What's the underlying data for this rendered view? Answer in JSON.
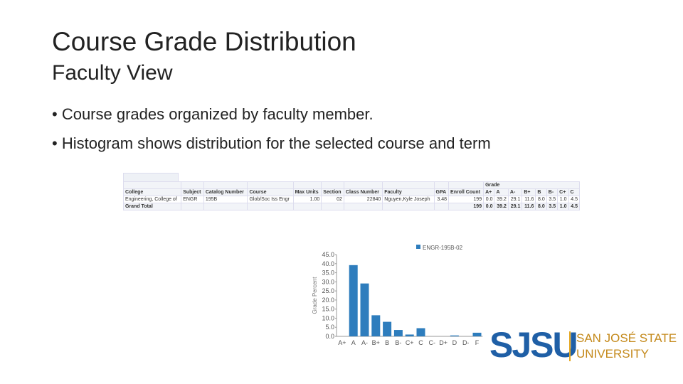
{
  "slide": {
    "title": "Course Grade Distribution",
    "subtitle": "Faculty View",
    "bullets": [
      "Course grades organized by faculty member.",
      "Histogram shows distribution for the selected course and term"
    ]
  },
  "table": {
    "group_header": "Grade",
    "headers": [
      "College",
      "Subject",
      "Catalog Number",
      "Course",
      "Max Units",
      "Section",
      "Class Number",
      "Faculty",
      "GPA",
      "Enroll Count"
    ],
    "grade_headers": [
      "A+",
      "A",
      "A-",
      "B+",
      "B",
      "B-",
      "C+",
      "C"
    ],
    "rows": [
      [
        "Engineering, College of",
        "ENGR",
        "195B",
        "Glob/Soc Iss Engr",
        "1.00",
        "02",
        "22840",
        "Nguyen,Kyle Joseph",
        "3.48",
        "199"
      ]
    ],
    "row_grades": [
      [
        "0.0",
        "39.2",
        "29.1",
        "11.6",
        "8.0",
        "3.5",
        "1.0",
        "4.5"
      ]
    ],
    "total_label": "Grand Total",
    "total_enroll": "199",
    "total_grades": [
      "0.0",
      "39.2",
      "29.1",
      "11.6",
      "8.0",
      "3.5",
      "1.0",
      "4.5"
    ]
  },
  "chart_data": {
    "type": "bar",
    "y_label": "Grade Percent",
    "categories": [
      "A+",
      "A",
      "A-",
      "B+",
      "B",
      "B-",
      "C+",
      "C",
      "C-",
      "D+",
      "D",
      "D-",
      "F"
    ],
    "series": [
      {
        "name": "ENGR-195B-02",
        "color": "#2e7dbd",
        "values": [
          0,
          39.2,
          29.1,
          11.6,
          8.0,
          3.5,
          1.0,
          4.5,
          0,
          0,
          0.5,
          0,
          2.0
        ]
      }
    ],
    "ylim": [
      0,
      45
    ],
    "yticks": [
      {
        "value": 0,
        "label": "0.0"
      },
      {
        "value": 5,
        "label": "5.0"
      },
      {
        "value": 10,
        "label": "10.0"
      },
      {
        "value": 15,
        "label": "15.0"
      },
      {
        "value": 20,
        "label": "20.0"
      },
      {
        "value": 25,
        "label": "25.0"
      },
      {
        "value": 30,
        "label": "30.0"
      },
      {
        "value": 35,
        "label": "35.0"
      },
      {
        "value": 40,
        "label": "40.0"
      },
      {
        "value": 45,
        "label": "45.0"
      }
    ]
  },
  "logo": {
    "mark": "SJSU",
    "line1": "SAN JOSÉ STATE",
    "line2": "UNIVERSITY"
  }
}
